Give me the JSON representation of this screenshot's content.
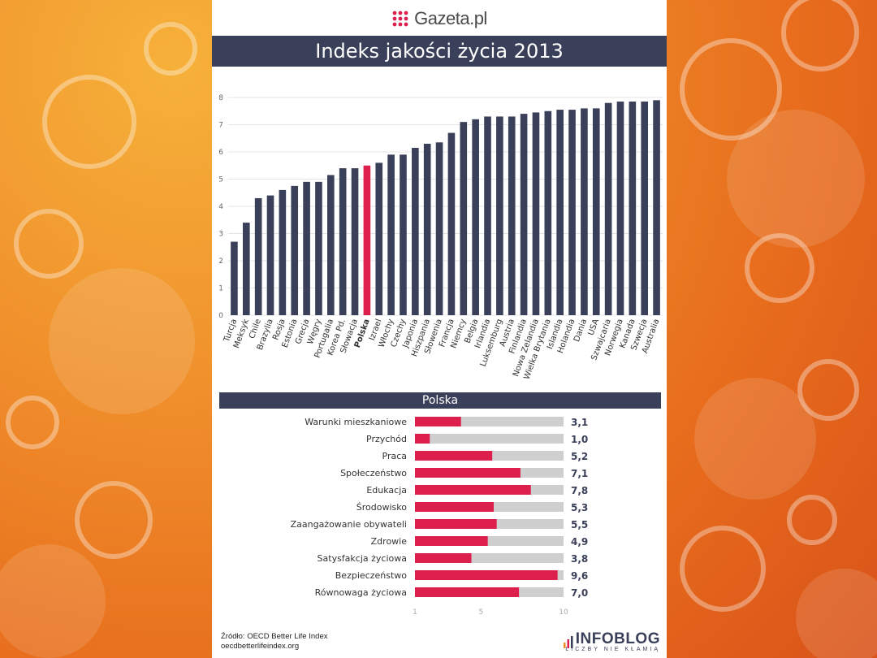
{
  "header": {
    "logo_text": "Gazeta.pl",
    "title": "Indeks jakości życia 2013"
  },
  "colors": {
    "bar": "#3a4059",
    "highlight": "#dc1f4c",
    "track": "#cfcfcf",
    "title_bg": "#3a4059"
  },
  "chart_data": [
    {
      "type": "bar",
      "title": "Indeks jakości życia 2013",
      "highlight": "Polska",
      "ylim": [
        0,
        8
      ],
      "yticks": [
        "0",
        "1",
        "2",
        "3",
        "4",
        "5",
        "6",
        "7",
        "8"
      ],
      "grid": true,
      "categories": [
        "Turcja",
        "Meksyk",
        "Chile",
        "Brazylia",
        "Rosja",
        "Estonia",
        "Grecja",
        "Węgry",
        "Portugalia",
        "Korea Pd.",
        "Słowacja",
        "Polska",
        "Izrael",
        "Włochy",
        "Czechy",
        "Japonia",
        "Hiszpania",
        "Słowenia",
        "Francja",
        "Niemcy",
        "Belgia",
        "Irlandia",
        "Luksemburg",
        "Austria",
        "Finlandia",
        "Nowa Zelandia",
        "Wielka Brytania",
        "Islandia",
        "Holandia",
        "Dania",
        "USA",
        "Szwajcaria",
        "Norwegia",
        "Kanada",
        "Szwecja",
        "Australia"
      ],
      "values": [
        2.7,
        3.4,
        4.3,
        4.4,
        4.6,
        4.75,
        4.9,
        4.9,
        5.15,
        5.4,
        5.4,
        5.5,
        5.6,
        5.9,
        5.9,
        6.15,
        6.3,
        6.35,
        6.7,
        7.1,
        7.2,
        7.3,
        7.3,
        7.3,
        7.4,
        7.45,
        7.5,
        7.55,
        7.55,
        7.6,
        7.6,
        7.8,
        7.85,
        7.85,
        7.85,
        7.9
      ]
    },
    {
      "type": "bar",
      "orientation": "horizontal",
      "title": "Polska",
      "xlim": [
        1,
        10
      ],
      "xticks": [
        "1",
        "5",
        "10"
      ],
      "categories": [
        "Warunki mieszkaniowe",
        "Przychód",
        "Praca",
        "Społeczeństwo",
        "Edukacja",
        "Środowisko",
        "Zaangażowanie obywateli",
        "Zdrowie",
        "Satysfakcja życiowa",
        "Bezpieczeństwo",
        "Równowaga życiowa"
      ],
      "values": [
        3.1,
        1.0,
        5.2,
        7.1,
        7.8,
        5.3,
        5.5,
        4.9,
        3.8,
        9.6,
        7.0
      ],
      "value_labels": [
        "3,1",
        "1,0",
        "5,2",
        "7,1",
        "7,8",
        "5,3",
        "5,5",
        "4,9",
        "3,8",
        "9,6",
        "7,0"
      ]
    }
  ],
  "footer": {
    "source_line1": "Źródło: OECD Better Life Index",
    "source_line2": "oecdbetterlifeindex.org",
    "brand_name": "INFOBLOG",
    "brand_tagline": "LICZBY NIE KŁAMIĄ"
  }
}
